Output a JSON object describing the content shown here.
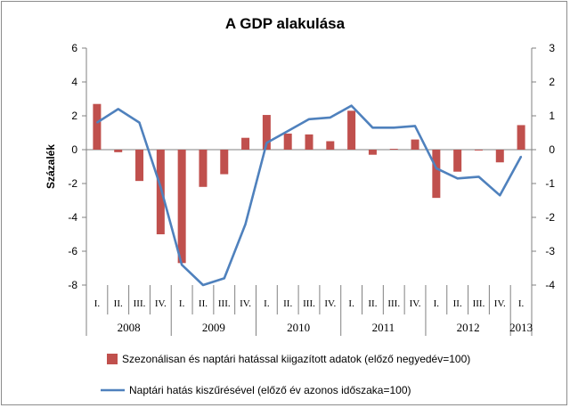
{
  "chart_data": {
    "type": "bar+line",
    "title": "A GDP alakulása",
    "ylabel": "Százalék",
    "y_left": {
      "range": [
        -8,
        6
      ],
      "ticks": [
        "6",
        "4",
        "2",
        "0",
        "-2",
        "-4",
        "-6",
        "-8"
      ]
    },
    "y_right": {
      "range": [
        -4,
        3
      ],
      "ticks": [
        "3",
        "2",
        "1",
        "0",
        "-1",
        "-2",
        "-3",
        "-4"
      ]
    },
    "categories": [
      "I.",
      "II.",
      "III.",
      "IV.",
      "I.",
      "II.",
      "III.",
      "IV.",
      "I.",
      "II.",
      "III.",
      "IV.",
      "I.",
      "II.",
      "III.",
      "IV.",
      "I.",
      "II.",
      "III.",
      "IV.",
      "I."
    ],
    "years": [
      {
        "label": "2008",
        "start": 0,
        "count": 4
      },
      {
        "label": "2009",
        "start": 4,
        "count": 4
      },
      {
        "label": "2010",
        "start": 8,
        "count": 4
      },
      {
        "label": "2011",
        "start": 12,
        "count": 4
      },
      {
        "label": "2012",
        "start": 16,
        "count": 4
      },
      {
        "label": "2013",
        "start": 20,
        "count": 1
      }
    ],
    "series": [
      {
        "name": "Szezonálisan és naptári hatással kiigazított adatok (előző negyedév=100)",
        "kind": "bar",
        "axis": "left",
        "color": "#c0504d",
        "values": [
          2.7,
          -0.15,
          -1.85,
          -5.0,
          -6.7,
          -2.2,
          -1.45,
          0.7,
          2.05,
          0.95,
          0.9,
          0.5,
          2.3,
          -0.3,
          0.05,
          0.6,
          -2.85,
          -1.3,
          -0.05,
          -0.75,
          1.45
        ]
      },
      {
        "name": "Naptári hatás kiszűrésével (előző év azonos időszaka=100)",
        "kind": "line",
        "axis": "right",
        "color": "#4f81bd",
        "values": [
          0.8,
          1.2,
          0.8,
          -1.1,
          -3.4,
          -4.0,
          -3.8,
          -2.2,
          0.2,
          0.55,
          0.9,
          0.95,
          1.3,
          0.65,
          0.65,
          0.7,
          -0.55,
          -0.85,
          -0.8,
          -1.35,
          -0.2
        ]
      }
    ]
  }
}
